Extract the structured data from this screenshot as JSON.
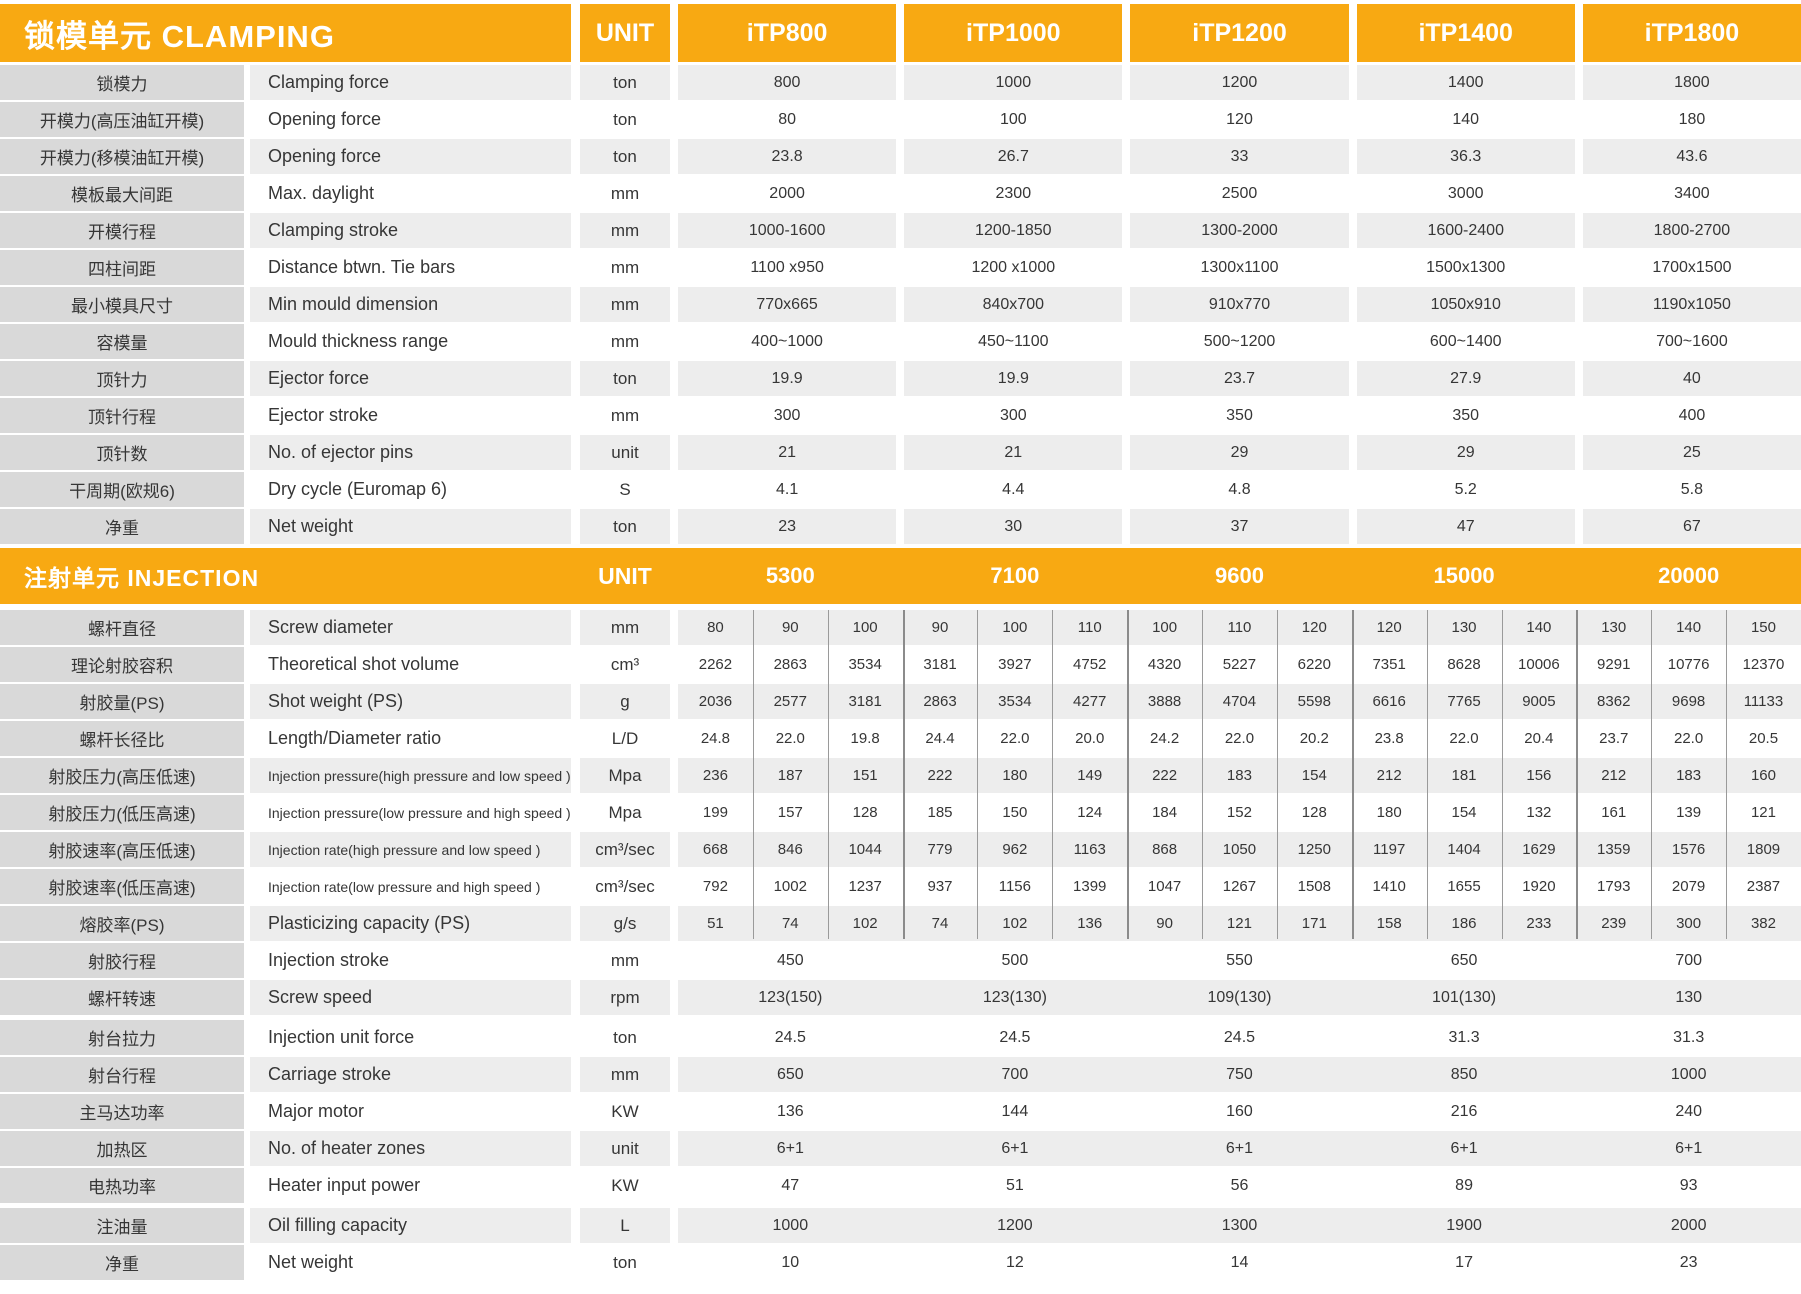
{
  "colors": {
    "header_orange": "#F8A912",
    "label_column_gray": "#D9D9D9",
    "row_stripe_gray": "#EDEDED",
    "body_text": "#363636",
    "subcolumn_line": "#9A9A9A",
    "group_line": "#8B8B8B"
  },
  "clamping": {
    "title": "锁模单元 CLAMPING",
    "unit_header": "UNIT",
    "models": [
      "iTP800",
      "iTP1000",
      "iTP1200",
      "iTP1400",
      "iTP1800"
    ],
    "rows": [
      {
        "cn": "锁模力",
        "en": "Clamping force",
        "unit": "ton",
        "values": [
          "800",
          "1000",
          "1200",
          "1400",
          "1800"
        ]
      },
      {
        "cn": "开模力(高压油缸开模)",
        "en": "Opening force",
        "unit": "ton",
        "values": [
          "80",
          "100",
          "120",
          "140",
          "180"
        ]
      },
      {
        "cn": "开模力(移模油缸开模)",
        "en": "Opening force",
        "unit": "ton",
        "values": [
          "23.8",
          "26.7",
          "33",
          "36.3",
          "43.6"
        ]
      },
      {
        "cn": "模板最大间距",
        "en": "Max. daylight",
        "unit": "mm",
        "values": [
          "2000",
          "2300",
          "2500",
          "3000",
          "3400"
        ]
      },
      {
        "cn": "开模行程",
        "en": "Clamping stroke",
        "unit": "mm",
        "values": [
          "1000-1600",
          "1200-1850",
          "1300-2000",
          "1600-2400",
          "1800-2700"
        ]
      },
      {
        "cn": "四柱间距",
        "en": "Distance btwn. Tie bars",
        "unit": "mm",
        "values": [
          "1100 x950",
          "1200 x1000",
          "1300x1100",
          "1500x1300",
          "1700x1500"
        ]
      },
      {
        "cn": "最小模具尺寸",
        "en": "Min mould dimension",
        "unit": "mm",
        "values": [
          "770x665",
          "840x700",
          "910x770",
          "1050x910",
          "1190x1050"
        ]
      },
      {
        "cn": "容模量",
        "en": "Mould thickness range",
        "unit": "mm",
        "values": [
          "400~1000",
          "450~1100",
          "500~1200",
          "600~1400",
          "700~1600"
        ]
      },
      {
        "cn": "顶针力",
        "en": "Ejector force",
        "unit": "ton",
        "values": [
          "19.9",
          "19.9",
          "23.7",
          "27.9",
          "40"
        ]
      },
      {
        "cn": "顶针行程",
        "en": "Ejector stroke",
        "unit": "mm",
        "values": [
          "300",
          "300",
          "350",
          "350",
          "400"
        ]
      },
      {
        "cn": "顶针数",
        "en": "No. of ejector pins",
        "unit": "unit",
        "values": [
          "21",
          "21",
          "29",
          "29",
          "25"
        ]
      },
      {
        "cn": "干周期(欧规6)",
        "en": "Dry cycle (Euromap 6)",
        "unit": "S",
        "values": [
          "4.1",
          "4.4",
          "4.8",
          "5.2",
          "5.8"
        ]
      },
      {
        "cn": "净重",
        "en": "Net weight",
        "unit": "ton",
        "values": [
          "23",
          "30",
          "37",
          "47",
          "67"
        ]
      }
    ]
  },
  "injection": {
    "title": "注射单元 INJECTION",
    "unit_header": "UNIT",
    "models": [
      "5300",
      "7100",
      "9600",
      "15000",
      "20000"
    ],
    "split_rows": [
      {
        "cn": "螺杆直径",
        "en": "Screw diameter",
        "unit": "mm",
        "values": [
          "80",
          "90",
          "100",
          "90",
          "100",
          "110",
          "100",
          "110",
          "120",
          "120",
          "130",
          "140",
          "130",
          "140",
          "150"
        ]
      },
      {
        "cn": "理论射胶容积",
        "en": "Theoretical shot volume",
        "unit": "cm³",
        "values": [
          "2262",
          "2863",
          "3534",
          "3181",
          "3927",
          "4752",
          "4320",
          "5227",
          "6220",
          "7351",
          "8628",
          "10006",
          "9291",
          "10776",
          "12370"
        ]
      },
      {
        "cn": "射胶量(PS)",
        "en": "Shot weight (PS)",
        "unit": "g",
        "values": [
          "2036",
          "2577",
          "3181",
          "2863",
          "3534",
          "4277",
          "3888",
          "4704",
          "5598",
          "6616",
          "7765",
          "9005",
          "8362",
          "9698",
          "11133"
        ]
      },
      {
        "cn": "螺杆长径比",
        "en": "Length/Diameter ratio",
        "unit": "L/D",
        "values": [
          "24.8",
          "22.0",
          "19.8",
          "24.4",
          "22.0",
          "20.0",
          "24.2",
          "22.0",
          "20.2",
          "23.8",
          "22.0",
          "20.4",
          "23.7",
          "22.0",
          "20.5"
        ]
      },
      {
        "cn": "射胶压力(高压低速)",
        "en": "Injection pressure(high pressure and low speed )",
        "unit": "Mpa",
        "small": true,
        "values": [
          "236",
          "187",
          "151",
          "222",
          "180",
          "149",
          "222",
          "183",
          "154",
          "212",
          "181",
          "156",
          "212",
          "183",
          "160"
        ]
      },
      {
        "cn": "射胶压力(低压高速)",
        "en": "Injection pressure(low pressure and high speed )",
        "unit": "Mpa",
        "small": true,
        "values": [
          "199",
          "157",
          "128",
          "185",
          "150",
          "124",
          "184",
          "152",
          "128",
          "180",
          "154",
          "132",
          "161",
          "139",
          "121"
        ]
      },
      {
        "cn": "射胶速率(高压低速)",
        "en": "Injection rate(high pressure and low speed )",
        "unit": "cm³/sec",
        "small": true,
        "values": [
          "668",
          "846",
          "1044",
          "779",
          "962",
          "1163",
          "868",
          "1050",
          "1250",
          "1197",
          "1404",
          "1629",
          "1359",
          "1576",
          "1809"
        ]
      },
      {
        "cn": "射胶速率(低压高速)",
        "en": "Injection rate(low pressure and high speed )",
        "unit": "cm³/sec",
        "small": true,
        "values": [
          "792",
          "1002",
          "1237",
          "937",
          "1156",
          "1399",
          "1047",
          "1267",
          "1508",
          "1410",
          "1655",
          "1920",
          "1793",
          "2079",
          "2387"
        ]
      },
      {
        "cn": "熔胶率(PS)",
        "en": "Plasticizing capacity (PS)",
        "unit": "g/s",
        "values": [
          "51",
          "74",
          "102",
          "74",
          "102",
          "136",
          "90",
          "121",
          "171",
          "158",
          "186",
          "233",
          "239",
          "300",
          "382"
        ]
      }
    ],
    "merged_rows": [
      {
        "cn": "射胶行程",
        "en": "Injection stroke",
        "unit": "mm",
        "values": [
          "450",
          "500",
          "550",
          "650",
          "700"
        ]
      },
      {
        "cn": "螺杆转速",
        "en": "Screw speed",
        "unit": "rpm",
        "values": [
          "123(150)",
          "123(130)",
          "109(130)",
          "101(130)",
          "130"
        ]
      },
      {
        "cn": "射台拉力",
        "en": "Injection unit force",
        "unit": "ton",
        "gap_top": true,
        "values": [
          "24.5",
          "24.5",
          "24.5",
          "31.3",
          "31.3"
        ]
      },
      {
        "cn": "射台行程",
        "en": "Carriage stroke",
        "unit": "mm",
        "values": [
          "650",
          "700",
          "750",
          "850",
          "1000"
        ]
      },
      {
        "cn": "主马达功率",
        "en": "Major motor",
        "unit": "KW",
        "values": [
          "136",
          "144",
          "160",
          "216",
          "240"
        ]
      },
      {
        "cn": "加热区",
        "en": "No. of heater zones",
        "unit": "unit",
        "values": [
          "6+1",
          "6+1",
          "6+1",
          "6+1",
          "6+1"
        ]
      },
      {
        "cn": "电热功率",
        "en": "Heater input power",
        "unit": "KW",
        "values": [
          "47",
          "51",
          "56",
          "89",
          "93"
        ]
      },
      {
        "cn": "注油量",
        "en": "Oil filling capacity",
        "unit": "L",
        "gap_top": true,
        "values": [
          "1000",
          "1200",
          "1300",
          "1900",
          "2000"
        ]
      },
      {
        "cn": "净重",
        "en": "Net weight",
        "unit": "ton",
        "values": [
          "10",
          "12",
          "14",
          "17",
          "23"
        ]
      }
    ]
  }
}
